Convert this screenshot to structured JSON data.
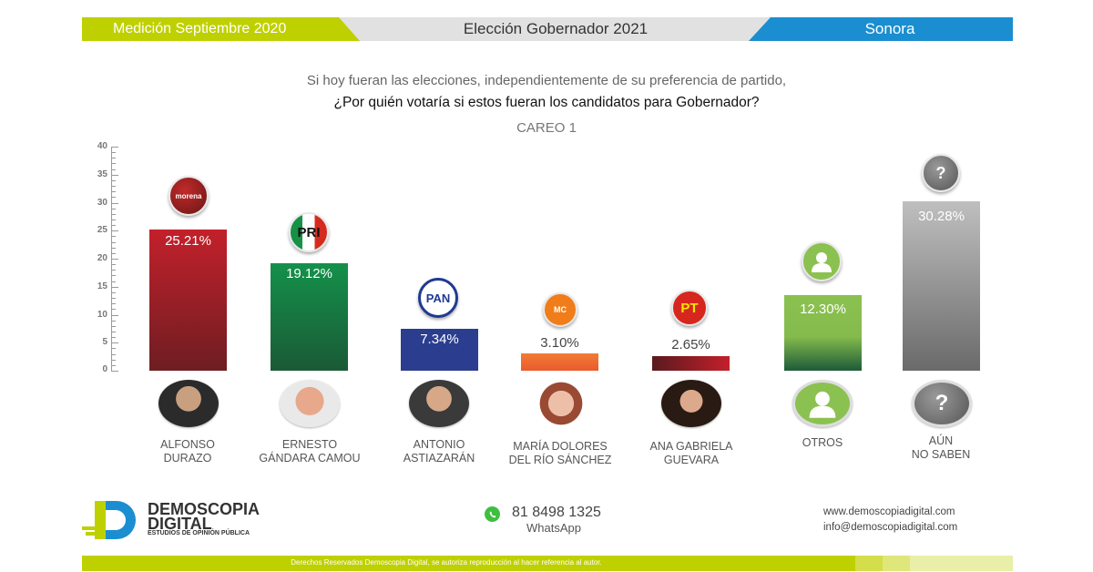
{
  "header": {
    "left_label": "Medición Septiembre 2020",
    "center_label": "Elección Gobernador 2021",
    "right_label": "Sonora",
    "colors": {
      "left": "#bfd000",
      "center": "#e1e1e1",
      "right": "#1a8ed0"
    }
  },
  "question": {
    "line1": "Si hoy fueran las elecciones, independientemente de su preferencia de partido,",
    "line2": "¿Por quién votaría si estos fueran los candidatos para Gobernador?",
    "subtitle": "CAREO 1"
  },
  "chart_data": {
    "type": "bar",
    "title": "¿Por quién votaría si estos fueran los candidatos para Gobernador?",
    "subtitle": "CAREO 1",
    "xlabel": "",
    "ylabel": "",
    "ylim": [
      0,
      40
    ],
    "yticks": [
      0,
      5,
      10,
      15,
      20,
      25,
      30,
      35,
      40
    ],
    "grid": false,
    "legend": "none",
    "categories": [
      "ALFONSO DURAZO",
      "ERNESTO GÁNDARA CAMOU",
      "ANTONIO ASTIAZARÁN",
      "MARÍA DOLORES DEL RÍO SÁNCHEZ",
      "ANA GABRIELA GUEVARA",
      "OTROS",
      "AÚN NO SABEN"
    ],
    "values": [
      25.21,
      19.12,
      7.34,
      3.1,
      2.65,
      12.3,
      30.28
    ],
    "value_labels": [
      "25.21%",
      "19.12%",
      "7.34%",
      "3.10%",
      "2.65%",
      "12.30%",
      "30.28%"
    ],
    "parties": [
      "morena",
      "PRI",
      "PAN",
      "Movimiento Ciudadano",
      "PT",
      "",
      ""
    ],
    "colors": [
      "#b81f2a",
      "#138a45",
      "#2a3d8f",
      "#ef6f2e",
      "#b81f2a",
      "#8bbf4a",
      "#9a9a9a"
    ]
  },
  "axis": {
    "labels": [
      "40",
      "35",
      "30",
      "25",
      "20",
      "15",
      "10",
      "5",
      "0"
    ]
  },
  "candidates": [
    {
      "line1": "ALFONSO",
      "line2": "DURAZO",
      "logo_text": "morena",
      "value": "25.21%"
    },
    {
      "line1": "ERNESTO",
      "line2": "GÁNDARA CAMOU",
      "logo_text": "PRI",
      "value": "19.12%"
    },
    {
      "line1": "ANTONIO",
      "line2": "ASTIAZARÁN",
      "logo_text": "PAN",
      "value": "7.34%"
    },
    {
      "line1": "MARÍA DOLORES",
      "line2": "DEL RÍO SÁNCHEZ",
      "logo_text": "MC",
      "value": "3.10%"
    },
    {
      "line1": "ANA GABRIELA",
      "line2": "GUEVARA",
      "logo_text": "PT",
      "value": "2.65%"
    },
    {
      "line1": "OTROS",
      "line2": "",
      "logo_text": "",
      "value": "12.30%"
    },
    {
      "line1": "AÚN",
      "line2": "NO SABEN",
      "logo_text": "?",
      "value": "30.28%"
    }
  ],
  "footer": {
    "brand_line1": "DEMOSCOPIA",
    "brand_line2": "DIGITAL",
    "brand_tagline": "ESTUDIOS DE OPINIÓN PÚBLICA",
    "phone": "81 8498 1325",
    "phone_label": "WhatsApp",
    "website": "www.demoscopiadigital.com",
    "email": "info@demoscopiadigital.com",
    "copyright": "Derechos Reservados Demoscopia Digital, se autoriza reproducción al hacer referencia al autor."
  }
}
